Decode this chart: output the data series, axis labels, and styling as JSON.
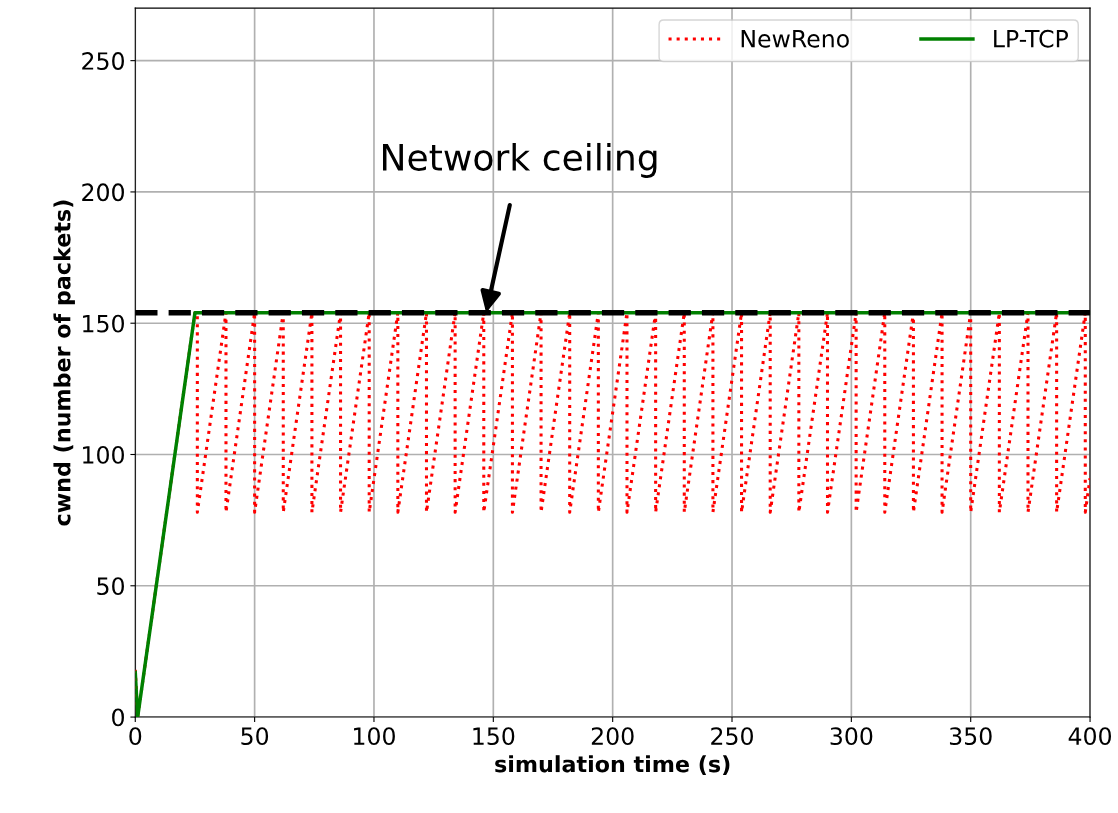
{
  "chart_data": {
    "type": "line",
    "xlabel": "simulation time (s)",
    "ylabel": "cwnd (number of packets)",
    "xlim": [
      0,
      400
    ],
    "xticks": [
      0,
      50,
      100,
      150,
      200,
      250,
      300,
      350,
      400
    ],
    "ylim": [
      0,
      270
    ],
    "yticks": [
      0,
      50,
      100,
      150,
      200,
      250
    ],
    "grid": true,
    "legend": "top right",
    "series": [
      {
        "name": "NewReno",
        "color": "#ff0000",
        "line_style": "dotted",
        "x": [
          0,
          1,
          25,
          26,
          26,
          38,
          38,
          50,
          50,
          62,
          62,
          74,
          74,
          86,
          86,
          98,
          98,
          110,
          110,
          122,
          122,
          134,
          134,
          146,
          146,
          158,
          158,
          170,
          170,
          182,
          182,
          194,
          194,
          206,
          206,
          218,
          218,
          230,
          230,
          242,
          242,
          254,
          254,
          266,
          266,
          278,
          278,
          290,
          290,
          302,
          302,
          314,
          314,
          326,
          326,
          338,
          338,
          350,
          350,
          362,
          362,
          374,
          374,
          386,
          386,
          398,
          398,
          400
        ],
        "values": [
          18,
          0,
          154,
          154,
          78,
          154,
          78,
          154,
          78,
          154,
          78,
          154,
          78,
          154,
          78,
          154,
          78,
          154,
          78,
          154,
          78,
          154,
          78,
          154,
          78,
          154,
          78,
          154,
          78,
          154,
          78,
          154,
          78,
          154,
          78,
          154,
          78,
          154,
          78,
          154,
          78,
          154,
          78,
          154,
          78,
          154,
          78,
          154,
          78,
          154,
          78,
          154,
          78,
          154,
          78,
          154,
          78,
          154,
          78,
          154,
          78,
          154,
          78,
          154,
          78,
          154,
          78,
          91
        ]
      },
      {
        "name": "LP-TCP",
        "color": "#008000",
        "line_style": "solid",
        "x": [
          0,
          1,
          25,
          400
        ],
        "values": [
          17,
          0,
          154,
          154
        ]
      }
    ],
    "ref_lines": [
      {
        "axis": "y",
        "value": 154,
        "color": "#000000",
        "line_style": "dashed"
      }
    ],
    "annotations": [
      {
        "text": "Network ceiling",
        "x": 147,
        "y": 154
      }
    ]
  }
}
